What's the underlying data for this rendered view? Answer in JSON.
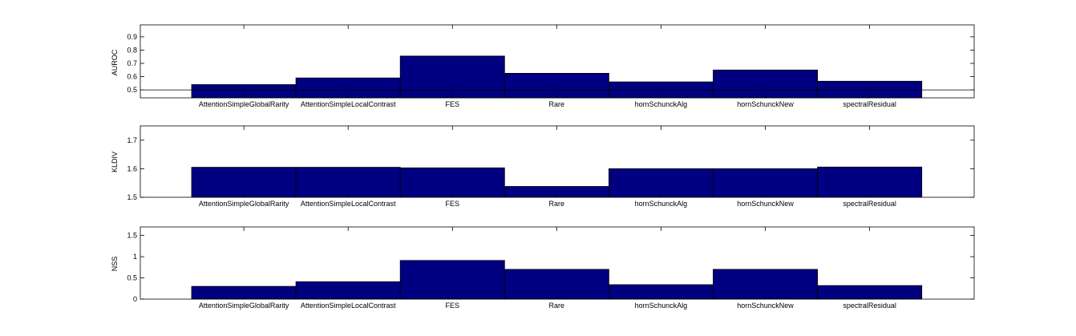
{
  "chart_data": [
    {
      "type": "bar",
      "ylabel": "AUROC",
      "ylim": [
        0.44,
        0.99
      ],
      "yticks": [
        "0.5",
        "0.6",
        "0.7",
        "0.8",
        "0.9"
      ],
      "baseline": 0.5,
      "categories": [
        "AttentionSimpleGlobalRarity",
        "AttentionSimpleLocalContrast",
        "FES",
        "Rare",
        "hornSchunckAlg",
        "hornSchunckNew",
        "spectralResidual"
      ],
      "values": [
        0.54,
        0.59,
        0.755,
        0.625,
        0.56,
        0.65,
        0.565
      ],
      "bar_color": "#000080",
      "grid": false
    },
    {
      "type": "bar",
      "ylabel": "KLDIV",
      "ylim": [
        1.5,
        1.75
      ],
      "yticks": [
        "1.5",
        "1.6",
        "1.7"
      ],
      "categories": [
        "AttentionSimpleGlobalRarity",
        "AttentionSimpleLocalContrast",
        "FES",
        "Rare",
        "hornSchunckAlg",
        "hornSchunckNew",
        "spectralResidual"
      ],
      "values": [
        1.605,
        1.605,
        1.603,
        1.538,
        1.6,
        1.6,
        1.606
      ],
      "bar_color": "#000080",
      "grid": false
    },
    {
      "type": "bar",
      "ylabel": "NSS",
      "ylim": [
        0,
        1.7
      ],
      "yticks": [
        "0",
        "0.5",
        "1",
        "1.5"
      ],
      "categories": [
        "AttentionSimpleGlobalRarity",
        "AttentionSimpleLocalContrast",
        "FES",
        "Rare",
        "hornSchunckAlg",
        "hornSchunckNew",
        "spectralResidual"
      ],
      "values": [
        0.3,
        0.41,
        0.91,
        0.7,
        0.34,
        0.7,
        0.32
      ],
      "bar_color": "#000080",
      "grid": false
    }
  ]
}
